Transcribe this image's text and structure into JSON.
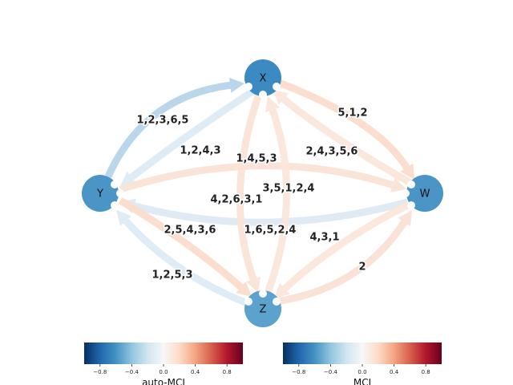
{
  "nodes": [
    {
      "id": "X",
      "label": "X",
      "color": "#3b8bc2"
    },
    {
      "id": "Y",
      "label": "Y",
      "color": "#4a94c6"
    },
    {
      "id": "W",
      "label": "W",
      "color": "#4a94c6"
    },
    {
      "id": "Z",
      "label": "Z",
      "color": "#5ba2cf"
    }
  ],
  "edges": [
    {
      "from": "Y",
      "to": "X",
      "label": "1,2,3,6,5",
      "color": "#b5d4e9"
    },
    {
      "from": "X",
      "to": "Y",
      "label": "1,2,4,3",
      "color": "#deebf4"
    },
    {
      "from": "X",
      "to": "W",
      "label": "5,1,2",
      "color": "#fbdcca"
    },
    {
      "from": "W",
      "to": "X",
      "label": "2,4,3,5,6",
      "color": "#fae7dc"
    },
    {
      "from": "Y",
      "to": "W",
      "label": "1,4,5,3",
      "color": "#fae3d6"
    },
    {
      "from": "W",
      "to": "Y",
      "label": "1,6,5,2,4",
      "color": "#dde9f3"
    },
    {
      "from": "X",
      "to": "Z",
      "label": "4,2,6,3,1",
      "color": "#fbe4d7"
    },
    {
      "from": "Z",
      "to": "X",
      "label": "3,5,1,2,4",
      "color": "#fbe6da"
    },
    {
      "from": "Y",
      "to": "Z",
      "label": "2,5,4,3,6",
      "color": "#fbdcca"
    },
    {
      "from": "Z",
      "to": "Y",
      "label": "1,2,5,3",
      "color": "#deebf4"
    },
    {
      "from": "W",
      "to": "Z",
      "label": "4,3,1",
      "color": "#fbe6da"
    },
    {
      "from": "Z",
      "to": "W",
      "label": "2",
      "color": "#fae2d4"
    }
  ],
  "colorbars": [
    {
      "label": "auto-MCI",
      "ticks": [
        "−0.8",
        "−0.4",
        "0.0",
        "0.4",
        "0.8"
      ],
      "range": [
        -1,
        1
      ]
    },
    {
      "label": "MCI",
      "ticks": [
        "−0.8",
        "−0.4",
        "0.0",
        "0.4",
        "0.8"
      ],
      "range": [
        -1,
        1
      ]
    }
  ],
  "colormap": [
    "#053061",
    "#2166ac",
    "#4393c3",
    "#92c5de",
    "#d1e5f0",
    "#f7f7f7",
    "#fddbc7",
    "#f4a582",
    "#d6604d",
    "#b2182b",
    "#67001f"
  ]
}
